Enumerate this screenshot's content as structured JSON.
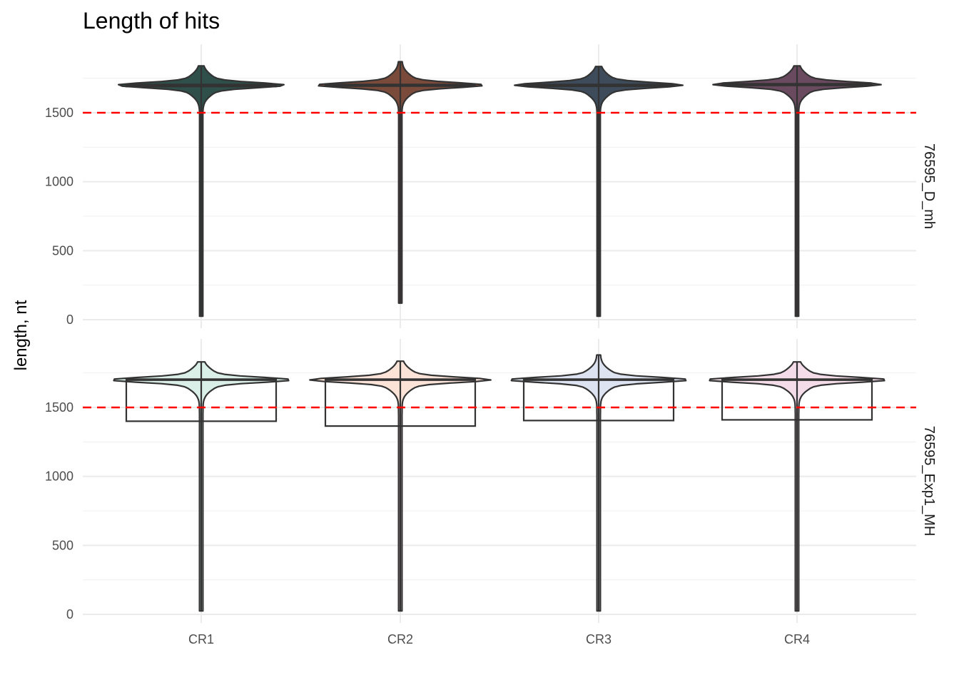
{
  "chart_data": {
    "type": "violin",
    "title": "Length of hits",
    "xlabel": "",
    "ylabel": "length, nt",
    "categories": [
      "CR1",
      "CR2",
      "CR3",
      "CR4"
    ],
    "ylim": [
      0,
      2000
    ],
    "yticks": [
      0,
      500,
      1000,
      1500
    ],
    "grid": true,
    "reference_line": {
      "y": 1500,
      "color": "#ff0000",
      "style": "dashed"
    },
    "colors": [
      "#2f4f4a",
      "#7a4a3a",
      "#3e4b5a",
      "#6a4a5f"
    ],
    "fill_light": [
      "#d9efe8",
      "#fbe3d7",
      "#dde3f0",
      "#f4dde9"
    ],
    "panels": [
      {
        "name": "76595_D_mh",
        "series": [
          {
            "category": "CR1",
            "median": 1700,
            "q1": 1690,
            "q3": 1705,
            "min": 25,
            "max": 1840,
            "mode": 1700,
            "width_at_mode": 1.0
          },
          {
            "category": "CR2",
            "median": 1700,
            "q1": 1693,
            "q3": 1705,
            "min": 120,
            "max": 1870,
            "mode": 1700,
            "width_at_mode": 1.0
          },
          {
            "category": "CR3",
            "median": 1700,
            "q1": 1692,
            "q3": 1705,
            "min": 25,
            "max": 1835,
            "mode": 1700,
            "width_at_mode": 1.0
          },
          {
            "category": "CR4",
            "median": 1705,
            "q1": 1698,
            "q3": 1710,
            "min": 25,
            "max": 1840,
            "mode": 1705,
            "width_at_mode": 1.0
          }
        ]
      },
      {
        "name": "76595_Exp1_MH",
        "series": [
          {
            "category": "CR1",
            "median": 1700,
            "q1": 1400,
            "q3": 1705,
            "min": 25,
            "max": 1830,
            "mode": 1700,
            "width_at_mode": 1.0
          },
          {
            "category": "CR2",
            "median": 1700,
            "q1": 1365,
            "q3": 1705,
            "min": 25,
            "max": 1835,
            "mode": 1700,
            "width_at_mode": 1.0
          },
          {
            "category": "CR3",
            "median": 1700,
            "q1": 1405,
            "q3": 1705,
            "min": 25,
            "max": 1880,
            "mode": 1700,
            "width_at_mode": 1.0
          },
          {
            "category": "CR4",
            "median": 1700,
            "q1": 1410,
            "q3": 1705,
            "min": 25,
            "max": 1830,
            "mode": 1700,
            "width_at_mode": 1.0
          }
        ]
      }
    ]
  }
}
